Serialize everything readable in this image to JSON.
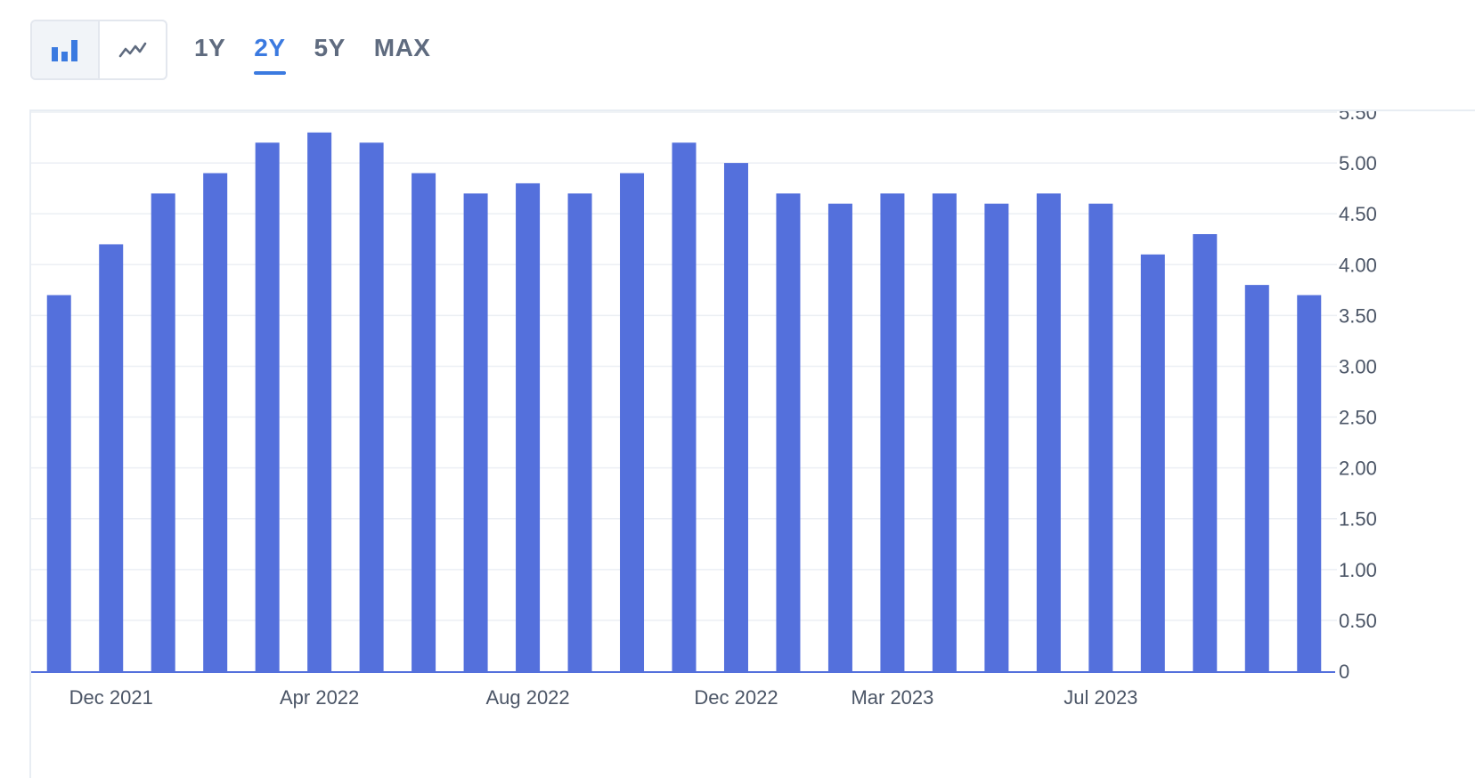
{
  "toolbar": {
    "chart_type_buttons": [
      {
        "icon": "bar-chart-icon",
        "active": true
      },
      {
        "icon": "line-chart-icon",
        "active": false
      }
    ],
    "range_tabs": [
      {
        "label": "1Y",
        "active": false
      },
      {
        "label": "2Y",
        "active": true
      },
      {
        "label": "5Y",
        "active": false
      },
      {
        "label": "MAX",
        "active": false
      }
    ]
  },
  "colors": {
    "bar": "#5470dc",
    "accent": "#3b7ae0",
    "grid": "#eceff4",
    "axis_text": "#4b5566"
  },
  "chart_data": {
    "type": "bar",
    "categories": [
      "Nov 2021",
      "Dec 2021",
      "Jan 2022",
      "Feb 2022",
      "Mar 2022",
      "Apr 2022",
      "May 2022",
      "Jun 2022",
      "Jul 2022",
      "Aug 2022",
      "Sep 2022",
      "Oct 2022",
      "Nov 2022",
      "Dec 2022",
      "Jan 2023",
      "Feb 2023",
      "Mar 2023",
      "Apr 2023",
      "May 2023",
      "Jun 2023",
      "Jul 2023",
      "Aug 2023",
      "Sep 2023",
      "Oct 2023",
      "Nov 2023"
    ],
    "values": [
      3.7,
      4.2,
      4.7,
      4.9,
      5.2,
      5.3,
      5.2,
      4.9,
      4.7,
      4.8,
      4.7,
      4.9,
      5.2,
      5.0,
      4.7,
      4.6,
      4.7,
      4.7,
      4.6,
      4.7,
      4.6,
      4.1,
      4.3,
      3.8,
      3.7
    ],
    "ylim": [
      0,
      5.5
    ],
    "yticks": [
      "0",
      "0.50",
      "1.00",
      "1.50",
      "2.00",
      "2.50",
      "3.00",
      "3.50",
      "4.00",
      "4.50",
      "5.00",
      "5.50"
    ],
    "x_labels": [
      {
        "label": "Dec 2021",
        "category": "Dec 2021"
      },
      {
        "label": "Apr 2022",
        "category": "Apr 2022"
      },
      {
        "label": "Aug 2022",
        "category": "Aug 2022"
      },
      {
        "label": "Dec 2022",
        "category": "Dec 2022"
      },
      {
        "label": "Mar 2023",
        "category": "Mar 2023"
      },
      {
        "label": "Jul 2023",
        "category": "Jul 2023"
      }
    ],
    "y_axis_position": "right",
    "grid": true,
    "title": "",
    "xlabel": "",
    "ylabel": ""
  }
}
